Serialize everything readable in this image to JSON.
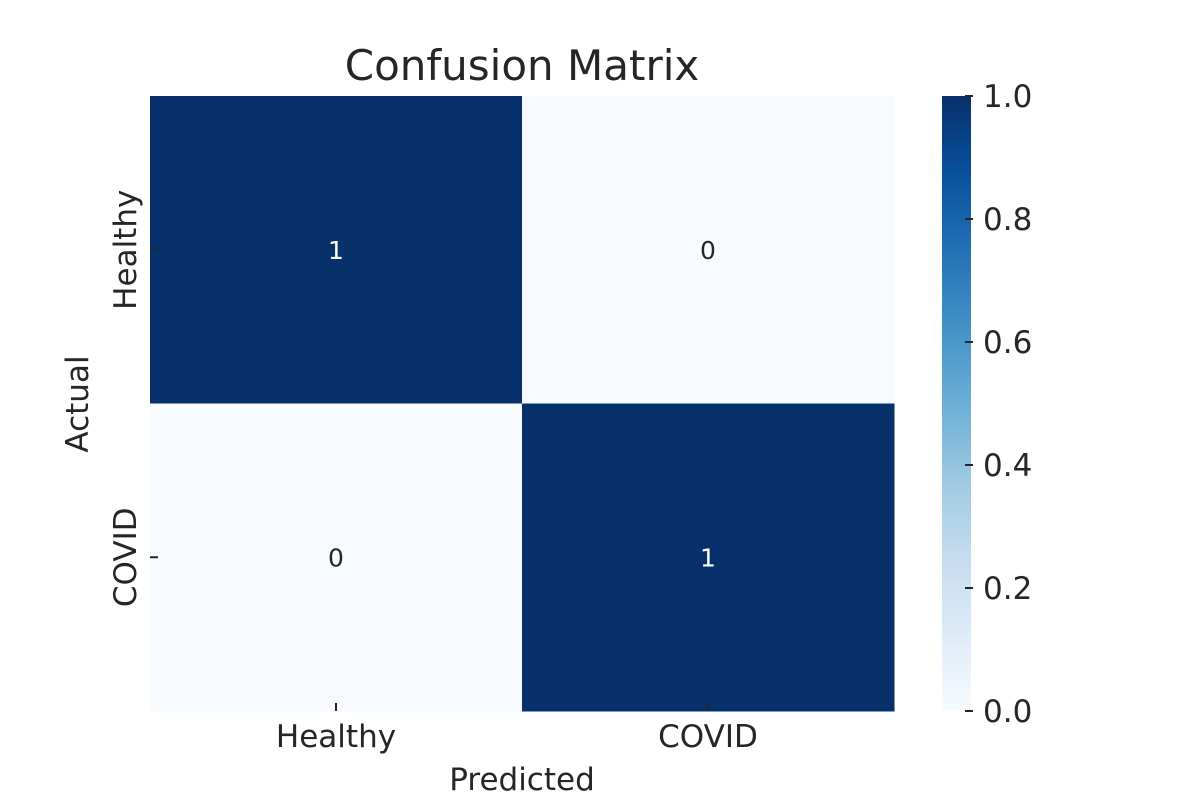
{
  "chart_data": {
    "type": "heatmap",
    "title": "Confusion Matrix",
    "xlabel": "Predicted",
    "ylabel": "Actual",
    "x_categories": [
      "Healthy",
      "COVID"
    ],
    "y_categories": [
      "Healthy",
      "COVID"
    ],
    "values": [
      [
        1,
        0
      ],
      [
        0,
        1
      ]
    ],
    "annotations": [
      [
        "1",
        "0"
      ],
      [
        "0",
        "1"
      ]
    ],
    "colormap": "Blues",
    "colormap_stops": [
      "#f7fbff",
      "#deebf7",
      "#c6dbef",
      "#9ecae1",
      "#6baed6",
      "#4292c6",
      "#2171b5",
      "#08519c",
      "#08306b"
    ],
    "colorbar": {
      "range": [
        0.0,
        1.0
      ],
      "ticks": [
        "0.0",
        "0.2",
        "0.4",
        "0.6",
        "0.8",
        "1.0"
      ]
    },
    "grid": false
  }
}
